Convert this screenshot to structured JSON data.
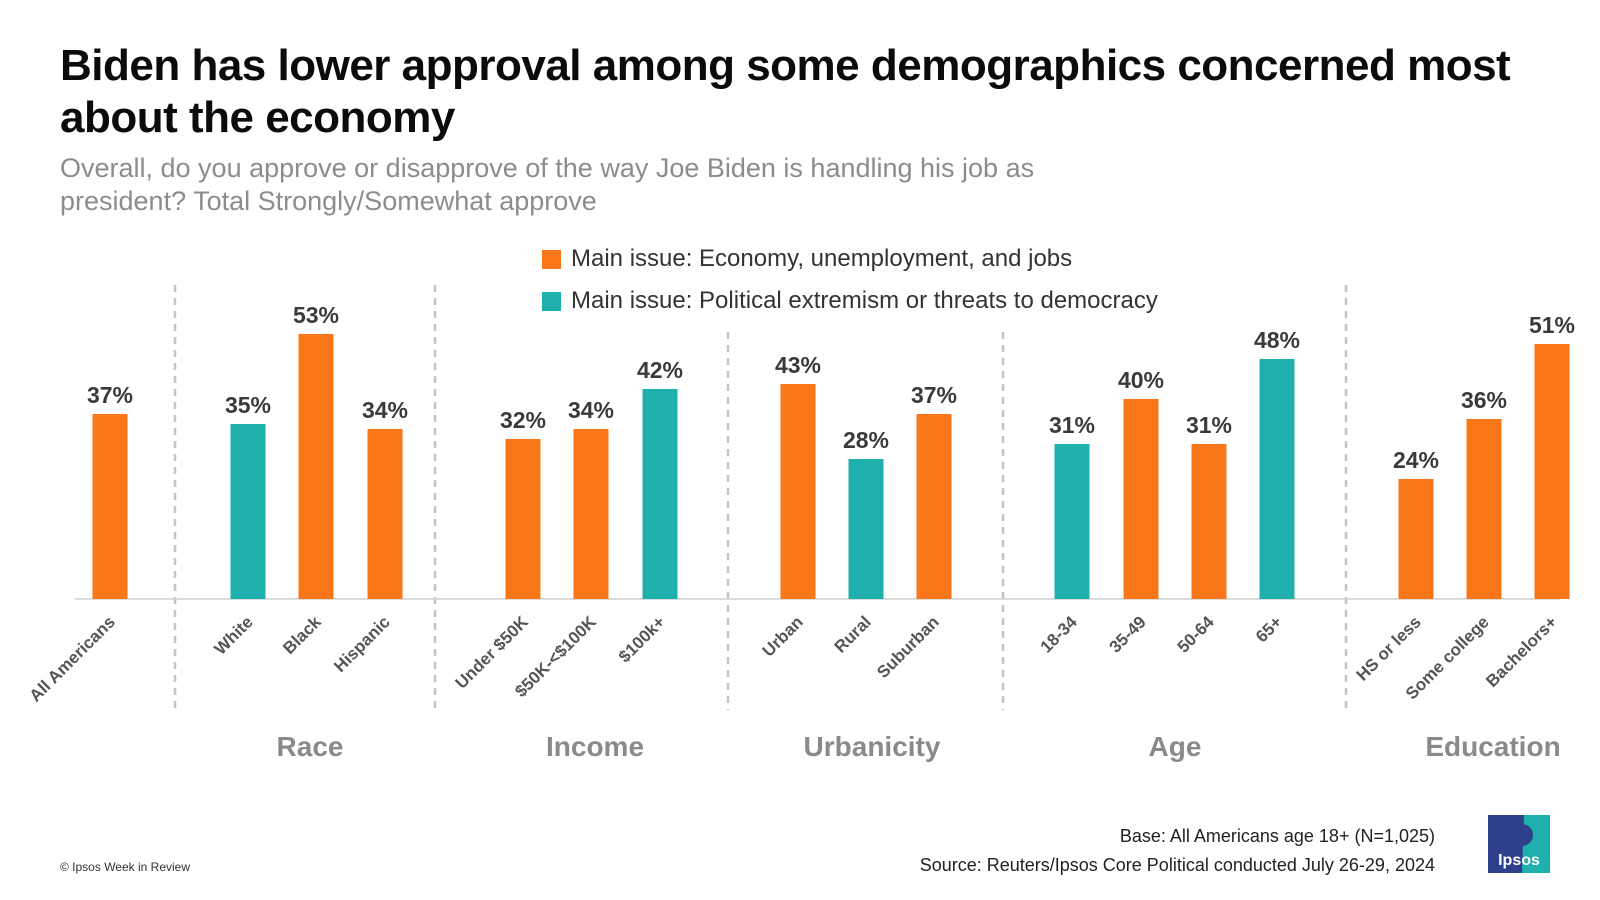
{
  "title": "Biden has lower approval among some demographics concerned most about the economy",
  "subtitle": "Overall, do you approve or disapprove of the way Joe Biden is handling his job as president? Total Strongly/Somewhat approve",
  "legend": [
    {
      "label": "Main issue: Economy, unemployment, and jobs",
      "color": "#f97718"
    },
    {
      "label": "Main issue: Political extremism or threats to democracy",
      "color": "#1fb0ae"
    }
  ],
  "chart_data": {
    "type": "bar",
    "title": "Biden has lower approval among some demographics concerned most about the economy",
    "ylim": [
      0,
      60
    ],
    "grid": false,
    "legend_position": "top-center",
    "categories": [
      "All Americans",
      "White",
      "Black",
      "Hispanic",
      "Under $50K",
      "$50K-<$100K",
      "$100k+",
      "Urban",
      "Rural",
      "Suburban",
      "18-34",
      "35-49",
      "50-64",
      "65+",
      "HS or less",
      "Some college",
      "Bachelors+"
    ],
    "values": [
      37,
      35,
      53,
      34,
      32,
      34,
      42,
      43,
      28,
      37,
      31,
      40,
      31,
      48,
      24,
      36,
      51
    ],
    "value_labels": [
      "37%",
      "35%",
      "53%",
      "34%",
      "32%",
      "34%",
      "42%",
      "43%",
      "28%",
      "37%",
      "31%",
      "40%",
      "31%",
      "48%",
      "24%",
      "36%",
      "51%"
    ],
    "main_issue": [
      "economy",
      "democracy",
      "economy",
      "economy",
      "economy",
      "economy",
      "democracy",
      "economy",
      "democracy",
      "economy",
      "democracy",
      "economy",
      "economy",
      "democracy",
      "economy",
      "economy",
      "economy"
    ],
    "groups": [
      {
        "name": "",
        "categories": [
          "All Americans"
        ]
      },
      {
        "name": "Race",
        "categories": [
          "White",
          "Black",
          "Hispanic"
        ]
      },
      {
        "name": "Income",
        "categories": [
          "Under $50K",
          "$50K-<$100K",
          "$100k+"
        ]
      },
      {
        "name": "Urbanicity",
        "categories": [
          "Urban",
          "Rural",
          "Suburban"
        ]
      },
      {
        "name": "Age",
        "categories": [
          "18-34",
          "35-49",
          "50-64",
          "65+"
        ]
      },
      {
        "name": "Education",
        "categories": [
          "HS or less",
          "Some college",
          "Bachelors+"
        ]
      }
    ],
    "colors": {
      "economy": "#f97718",
      "democracy": "#1fb0ae"
    }
  },
  "footer": {
    "copyright": "© Ipsos Week in Review",
    "base": "Base:  All Americans age 18+ (N=1,025)",
    "source": "Source: Reuters/Ipsos Core Political conducted July 26-29, 2024",
    "logo_text": "Ipsos"
  }
}
